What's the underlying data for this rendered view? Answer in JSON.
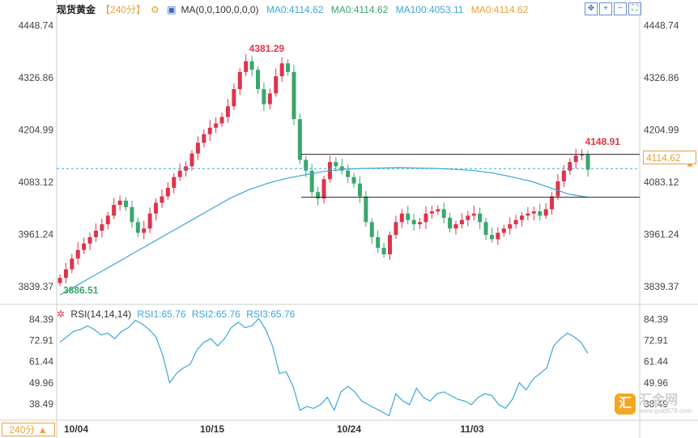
{
  "legend": {
    "title": "现货黄金",
    "period": "【240分】",
    "ma_label": "MA(0,0,100,0,0,0)",
    "ma1": "MA0:4114.62",
    "ma2": "MA0:4114.62",
    "ma3": "MA100:4053.11",
    "ma4": "MA0:4114.62"
  },
  "colors": {
    "up": "#e0334a",
    "down": "#3aa76d",
    "ma100": "#3ea6d8",
    "rsi": "#3ea6d8",
    "accent": "#e8a33c",
    "grid": "#d9d9d9"
  },
  "rsi_legend": {
    "label": "RSI(14,14,14)",
    "rsi1": "RSI1:65.76",
    "rsi2": "RSI2:65.76",
    "rsi3": "RSI3:65.76"
  },
  "current_price": "4114.62",
  "period_button": "240分 ▲",
  "watermark": {
    "icon": "汇",
    "text": "汇金网",
    "sub": "www.gold678.com"
  },
  "chart_data": [
    {
      "type": "candlestick",
      "title": "现货黄金",
      "y_ticks": [
        4448.74,
        4326.86,
        4204.99,
        4083.12,
        3961.24,
        3839.37
      ],
      "ylim": [
        3800,
        4470
      ],
      "x_ticks": [
        "10/04",
        "10/15",
        "10/24",
        "11/03"
      ],
      "annotations": [
        {
          "label": "4381.29",
          "type": "high"
        },
        {
          "label": "3886.51",
          "type": "low"
        },
        {
          "label": "4148.91",
          "type": "recent_high"
        }
      ],
      "horizontal_lines": [
        4148,
        4048
      ],
      "current_line": 4114.62,
      "close_series": [
        3860,
        3880,
        3905,
        3925,
        3940,
        3955,
        3970,
        3985,
        4005,
        4030,
        4040,
        4025,
        3990,
        3965,
        3975,
        4010,
        4035,
        4050,
        4070,
        4095,
        4110,
        4120,
        4150,
        4175,
        4195,
        4210,
        4220,
        4235,
        4260,
        4300,
        4340,
        4365,
        4345,
        4300,
        4265,
        4290,
        4330,
        4360,
        4340,
        4230,
        4135,
        4110,
        4060,
        4045,
        4090,
        4130,
        4120,
        4110,
        4095,
        4080,
        4050,
        3990,
        3955,
        3930,
        3915,
        3960,
        3990,
        4010,
        3995,
        3985,
        3990,
        4010,
        4015,
        4020,
        4000,
        3975,
        3985,
        3995,
        4005,
        4010,
        3990,
        3960,
        3950,
        3965,
        3975,
        3985,
        3995,
        4005,
        4010,
        4015,
        4005,
        4020,
        4050,
        4085,
        4110,
        4130,
        4145,
        4148,
        4112
      ],
      "ma100_series": [
        3820,
        3845,
        3870,
        3895,
        3920,
        3945,
        3970,
        3995,
        4020,
        4045,
        4065,
        4080,
        4092,
        4100,
        4108,
        4113,
        4115,
        4116,
        4117,
        4116,
        4115,
        4113,
        4110,
        4104,
        4095,
        4085,
        4070,
        4055,
        4048
      ],
      "ma100": 4053.11
    },
    {
      "type": "line",
      "title": "RSI(14,14,14)",
      "y_ticks": [
        84.39,
        72.91,
        61.44,
        49.96,
        38.49
      ],
      "ylim": [
        30,
        90
      ],
      "rsi_series": [
        72,
        75,
        78,
        79,
        81,
        79,
        76,
        77,
        74,
        78,
        80,
        84,
        82,
        79,
        75,
        65,
        50,
        55,
        58,
        60,
        68,
        72,
        74,
        70,
        74,
        80,
        83,
        80,
        81,
        85,
        79,
        70,
        55,
        56,
        48,
        35,
        37,
        36,
        38,
        42,
        35,
        45,
        48,
        45,
        40,
        38,
        36,
        34,
        32,
        44,
        40,
        38,
        47,
        42,
        40,
        44,
        45,
        43,
        41,
        40,
        38,
        42,
        44,
        43,
        38,
        36,
        41,
        50,
        46,
        52,
        55,
        58,
        70,
        74,
        77,
        75,
        72,
        66
      ]
    }
  ]
}
